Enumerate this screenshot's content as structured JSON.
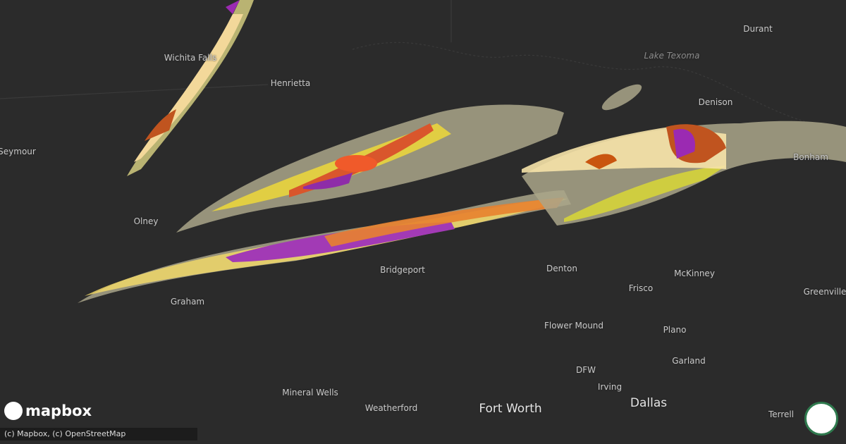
{
  "map": {
    "places": [
      "Durant",
      "Lake Texoma",
      "Denison",
      "Henrietta",
      "Wichita Falls",
      "Seymour",
      "Olney",
      "Bonham",
      "Graham",
      "Bridgeport",
      "Denton",
      "McKinney",
      "Frisco",
      "Greenville",
      "Flower Mound",
      "Plano",
      "DFW",
      "Irving",
      "Garland",
      "Mineral Wells",
      "Weatherford",
      "Fort Worth",
      "Dallas",
      "Terrell"
    ],
    "logo": "mapbox",
    "attribution": "(c) Mapbox, (c) OpenStreetMap"
  }
}
